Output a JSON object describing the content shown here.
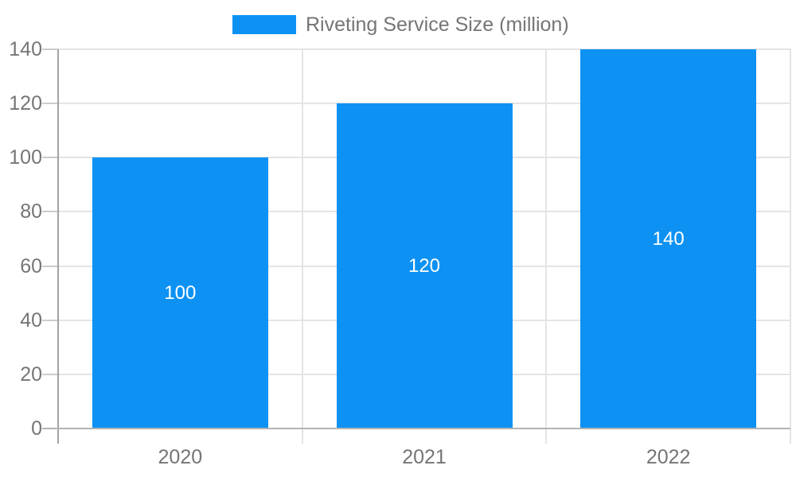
{
  "legend": {
    "label": "Riveting Service Size (million)"
  },
  "chart_data": {
    "type": "bar",
    "title": "",
    "categories": [
      "2020",
      "2021",
      "2022"
    ],
    "series": [
      {
        "name": "Riveting Service Size (million)",
        "values": [
          100,
          120,
          140
        ]
      }
    ],
    "data_labels": [
      "100",
      "120",
      "140"
    ],
    "xlabel": "",
    "ylabel": "",
    "ylim": [
      0,
      140
    ],
    "ytick_step": 20,
    "ytick_labels": [
      "0",
      "20",
      "40",
      "60",
      "80",
      "100",
      "120",
      "140"
    ],
    "grid": true,
    "legend_position": "top"
  },
  "colors": {
    "bar": "#0d92f4",
    "bar_label": "#ffffff",
    "axis_text": "#757575",
    "grid_line": "#e4e4e4",
    "y_axis_line": "#a3a3a3",
    "x_axis_line": "#b3b3b3",
    "tick": "#cccccc",
    "background": "#ffffff"
  }
}
